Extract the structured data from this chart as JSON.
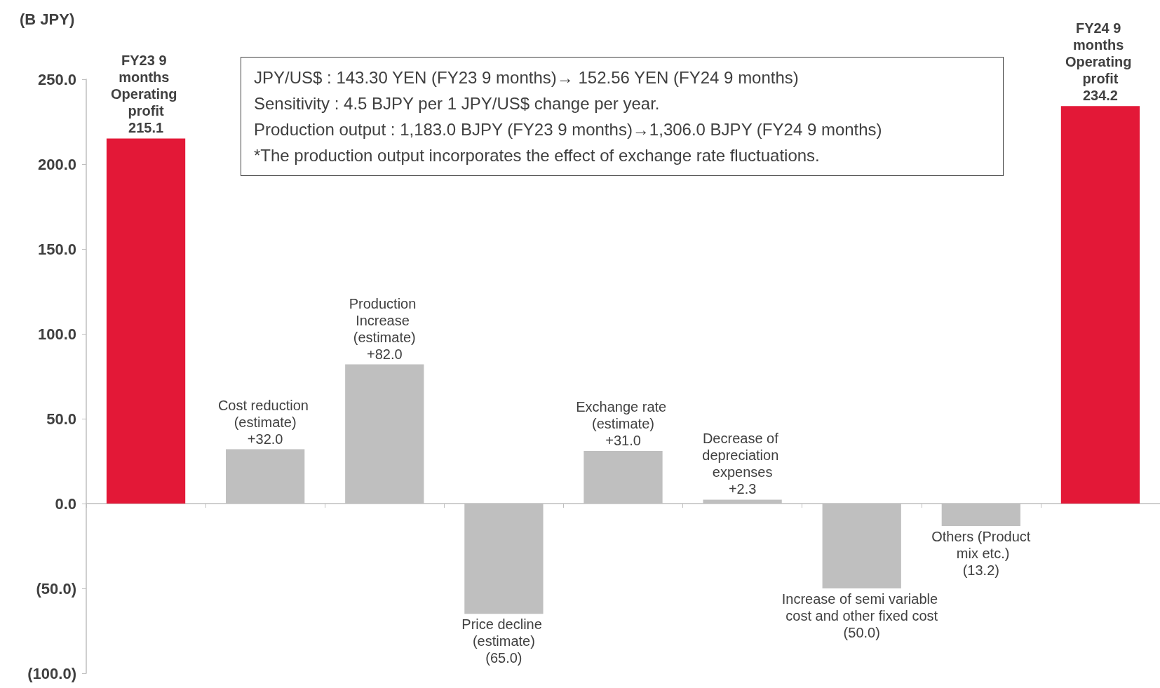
{
  "chart_data": {
    "type": "bar",
    "categories": [
      "FY23 9 months Operating profit",
      "Cost reduction (estimate)",
      "Production Increase (estimate)",
      "Price decline (estimate)",
      "Exchange rate (estimate)",
      "Decrease of depreciation expenses",
      "Increase of semi variable cost and other fixed cost",
      "Others (Product mix etc.)",
      "FY24 9 months Operating profit"
    ],
    "values": [
      215.1,
      32.0,
      82.0,
      -65.0,
      31.0,
      2.3,
      -50.0,
      -13.2,
      234.2
    ],
    "value_labels": [
      "215.1",
      "+32.0",
      "+82.0",
      "(65.0)",
      "+31.0",
      "+2.3",
      "(50.0)",
      "(13.2)",
      "234.2"
    ],
    "colors": [
      "#e31837",
      "#bfbfbf",
      "#bfbfbf",
      "#bfbfbf",
      "#bfbfbf",
      "#bfbfbf",
      "#bfbfbf",
      "#bfbfbf",
      "#e31837"
    ],
    "ylabel": "(B JPY)",
    "ylim": [
      -100,
      250
    ],
    "yticks": [
      {
        "value": -100,
        "label": "(100.0)"
      },
      {
        "value": -50,
        "label": "(50.0)"
      },
      {
        "value": 0,
        "label": "0.0"
      },
      {
        "value": 50,
        "label": "50.0"
      },
      {
        "value": 100,
        "label": "100.0"
      },
      {
        "value": 150,
        "label": "150.0"
      },
      {
        "value": 200,
        "label": "200.0"
      },
      {
        "value": 250,
        "label": "250.0"
      }
    ],
    "tick_labels": "y",
    "annotations": [
      "JPY/US$ : 143.30 YEN (FY23 9 months)→ 152.56 YEN (FY24 9 months)",
      "Sensitivity : 4.5 BJPY per 1 JPY/US$ change per year.",
      "Production output : 1,183.0 BJPY (FY23 9 months)→1,306.0 BJPY (FY24 9 months)",
      "*The production output incorporates the effect of exchange rate fluctuations."
    ]
  }
}
